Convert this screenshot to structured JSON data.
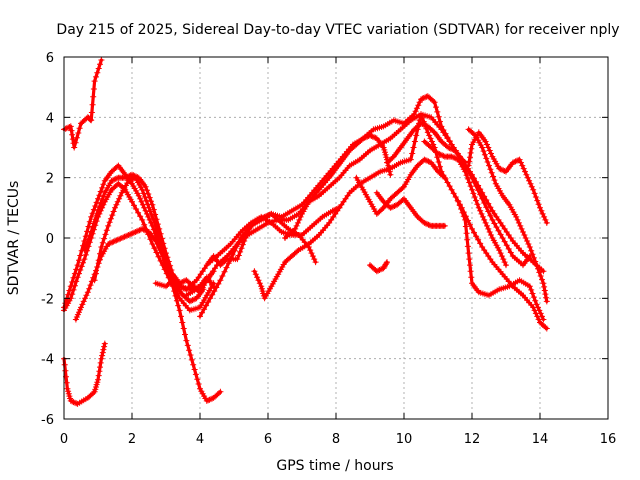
{
  "chart_data": {
    "type": "scatter",
    "title": "Day 215 of 2025, Sidereal Day-to-day VTEC variation (SDTVAR) for receiver nply",
    "xlabel": "GPS time / hours",
    "ylabel": "SDTVAR / TECUs",
    "xlim": [
      0,
      16
    ],
    "ylim": [
      -6,
      6
    ],
    "x_ticks": [
      "0",
      "2",
      "4",
      "6",
      "8",
      "10",
      "12",
      "14",
      "16"
    ],
    "y_ticks": [
      "-6",
      "-4",
      "-2",
      "0",
      "2",
      "4",
      "6"
    ],
    "grid": true,
    "marker": "+",
    "color": "#ff0000",
    "tracks": [
      [
        [
          0.0,
          3.6
        ],
        [
          0.2,
          3.7
        ],
        [
          0.3,
          3.0
        ],
        [
          0.5,
          3.8
        ],
        [
          0.7,
          4.0
        ],
        [
          0.8,
          3.9
        ],
        [
          0.9,
          5.2
        ],
        [
          1.1,
          5.9
        ]
      ],
      [
        [
          0.0,
          -4.0
        ],
        [
          0.1,
          -5.0
        ],
        [
          0.2,
          -5.4
        ],
        [
          0.4,
          -5.5
        ],
        [
          0.7,
          -5.3
        ],
        [
          0.9,
          -5.1
        ],
        [
          1.0,
          -4.7
        ],
        [
          1.1,
          -4.0
        ],
        [
          1.2,
          -3.5
        ]
      ],
      [
        [
          0.0,
          -2.4
        ],
        [
          0.2,
          -2.0
        ],
        [
          0.4,
          -1.3
        ],
        [
          0.6,
          -0.7
        ],
        [
          0.8,
          0.0
        ],
        [
          1.0,
          0.7
        ],
        [
          1.2,
          1.2
        ],
        [
          1.4,
          1.6
        ],
        [
          1.6,
          1.8
        ],
        [
          1.8,
          1.6
        ],
        [
          2.0,
          1.2
        ],
        [
          2.3,
          0.6
        ],
        [
          2.6,
          -0.2
        ],
        [
          2.9,
          -0.9
        ],
        [
          3.2,
          -1.6
        ],
        [
          3.4,
          -2.4
        ],
        [
          3.6,
          -3.4
        ],
        [
          3.8,
          -4.2
        ],
        [
          4.0,
          -5.0
        ],
        [
          4.2,
          -5.4
        ],
        [
          4.4,
          -5.3
        ],
        [
          4.6,
          -5.1
        ]
      ],
      [
        [
          0.0,
          -2.3
        ],
        [
          0.2,
          -1.6
        ],
        [
          0.4,
          -0.9
        ],
        [
          0.6,
          -0.1
        ],
        [
          0.8,
          0.7
        ],
        [
          1.0,
          1.3
        ],
        [
          1.2,
          1.9
        ],
        [
          1.4,
          2.2
        ],
        [
          1.6,
          2.4
        ],
        [
          1.8,
          2.1
        ],
        [
          2.0,
          1.8
        ],
        [
          2.2,
          1.4
        ],
        [
          2.4,
          0.9
        ],
        [
          2.6,
          0.4
        ],
        [
          2.8,
          -0.2
        ],
        [
          3.0,
          -0.8
        ],
        [
          3.2,
          -1.3
        ],
        [
          3.4,
          -1.6
        ],
        [
          3.7,
          -1.7
        ],
        [
          4.0,
          -1.6
        ],
        [
          4.2,
          -1.3
        ],
        [
          4.4,
          -1.6
        ]
      ],
      [
        [
          0.35,
          -2.7
        ],
        [
          0.5,
          -2.3
        ],
        [
          0.7,
          -1.8
        ],
        [
          0.9,
          -1.2
        ],
        [
          1.1,
          -0.6
        ],
        [
          1.3,
          -0.2
        ],
        [
          1.5,
          -0.1
        ],
        [
          1.7,
          0.0
        ],
        [
          1.9,
          0.1
        ],
        [
          2.1,
          0.2
        ],
        [
          2.3,
          0.3
        ],
        [
          2.5,
          0.2
        ],
        [
          2.7,
          -0.1
        ],
        [
          2.9,
          -0.6
        ],
        [
          3.1,
          -1.3
        ],
        [
          3.4,
          -2.0
        ],
        [
          3.7,
          -2.4
        ],
        [
          4.0,
          -2.3
        ],
        [
          4.2,
          -1.9
        ],
        [
          4.4,
          -1.5
        ]
      ],
      [
        [
          0.6,
          -0.4
        ],
        [
          0.8,
          0.2
        ],
        [
          1.0,
          0.9
        ],
        [
          1.2,
          1.5
        ],
        [
          1.4,
          1.9
        ],
        [
          1.6,
          2.0
        ],
        [
          1.8,
          2.0
        ],
        [
          2.0,
          2.1
        ],
        [
          2.2,
          2.0
        ],
        [
          2.4,
          1.7
        ],
        [
          2.6,
          1.1
        ],
        [
          2.8,
          0.3
        ],
        [
          3.0,
          -0.5
        ],
        [
          3.2,
          -1.2
        ],
        [
          3.4,
          -1.5
        ],
        [
          3.6,
          -1.4
        ],
        [
          3.8,
          -1.6
        ],
        [
          4.0,
          -1.8
        ],
        [
          4.2,
          -1.4
        ],
        [
          4.4,
          -1.1
        ]
      ],
      [
        [
          0.9,
          -1.4
        ],
        [
          1.1,
          -0.3
        ],
        [
          1.3,
          0.4
        ],
        [
          1.5,
          1.0
        ],
        [
          1.7,
          1.5
        ],
        [
          1.9,
          1.9
        ],
        [
          2.1,
          2.0
        ],
        [
          2.3,
          1.6
        ],
        [
          2.5,
          1.0
        ],
        [
          2.7,
          0.4
        ],
        [
          2.9,
          -0.4
        ],
        [
          3.1,
          -1.1
        ],
        [
          3.3,
          -1.6
        ],
        [
          3.5,
          -1.9
        ],
        [
          3.7,
          -2.1
        ],
        [
          3.9,
          -2.0
        ],
        [
          4.1,
          -1.7
        ]
      ],
      [
        [
          2.7,
          -1.5
        ],
        [
          3.0,
          -1.6
        ],
        [
          3.2,
          -1.4
        ],
        [
          3.4,
          -1.6
        ],
        [
          3.6,
          -1.7
        ],
        [
          3.9,
          -1.4
        ],
        [
          4.2,
          -0.9
        ],
        [
          4.4,
          -0.6
        ],
        [
          4.6,
          -0.9
        ],
        [
          4.8,
          -0.7
        ],
        [
          5.1,
          -0.7
        ],
        [
          5.3,
          -0.1
        ],
        [
          5.5,
          0.4
        ],
        [
          5.7,
          0.6
        ],
        [
          5.9,
          0.7
        ],
        [
          6.1,
          0.8
        ],
        [
          6.3,
          0.6
        ],
        [
          6.6,
          0.3
        ],
        [
          6.9,
          0.1
        ],
        [
          7.2,
          -0.3
        ],
        [
          7.4,
          -0.8
        ]
      ],
      [
        [
          3.6,
          -1.9
        ],
        [
          3.9,
          -1.7
        ],
        [
          4.2,
          -1.4
        ],
        [
          4.5,
          -0.9
        ],
        [
          4.8,
          -0.6
        ],
        [
          5.1,
          -0.2
        ],
        [
          5.4,
          0.1
        ],
        [
          5.7,
          0.3
        ],
        [
          6.0,
          0.5
        ],
        [
          6.3,
          0.6
        ],
        [
          6.6,
          0.6
        ],
        [
          6.9,
          0.8
        ],
        [
          7.2,
          1.2
        ],
        [
          7.5,
          1.4
        ],
        [
          7.8,
          1.7
        ],
        [
          8.1,
          2.0
        ],
        [
          8.4,
          2.4
        ],
        [
          8.7,
          2.6
        ],
        [
          9.0,
          2.9
        ],
        [
          9.3,
          3.1
        ],
        [
          9.6,
          3.3
        ],
        [
          9.9,
          3.6
        ],
        [
          10.2,
          3.9
        ],
        [
          10.5,
          4.1
        ],
        [
          10.8,
          4.0
        ],
        [
          11.1,
          3.6
        ],
        [
          11.4,
          3.1
        ],
        [
          11.7,
          2.6
        ],
        [
          12.0,
          2.1
        ],
        [
          12.3,
          1.5
        ],
        [
          12.6,
          0.9
        ],
        [
          12.9,
          0.4
        ],
        [
          13.2,
          -0.1
        ],
        [
          13.5,
          -0.5
        ],
        [
          13.8,
          -0.8
        ],
        [
          14.1,
          -1.1
        ]
      ],
      [
        [
          4.0,
          -2.6
        ],
        [
          4.3,
          -2.0
        ],
        [
          4.6,
          -1.4
        ],
        [
          4.9,
          -0.7
        ],
        [
          5.2,
          0.0
        ],
        [
          5.5,
          0.4
        ],
        [
          5.8,
          0.6
        ],
        [
          6.1,
          0.8
        ],
        [
          6.4,
          0.7
        ],
        [
          6.7,
          0.9
        ],
        [
          7.0,
          1.1
        ],
        [
          7.3,
          1.5
        ],
        [
          7.6,
          1.9
        ],
        [
          7.9,
          2.3
        ],
        [
          8.2,
          2.7
        ],
        [
          8.5,
          3.1
        ],
        [
          8.8,
          3.3
        ],
        [
          9.1,
          3.6
        ],
        [
          9.4,
          3.7
        ],
        [
          9.7,
          3.9
        ],
        [
          10.0,
          3.8
        ],
        [
          10.3,
          4.1
        ],
        [
          10.5,
          4.6
        ],
        [
          10.7,
          4.7
        ],
        [
          10.9,
          4.5
        ],
        [
          11.1,
          3.7
        ],
        [
          11.4,
          3.1
        ],
        [
          11.7,
          2.6
        ],
        [
          12.0,
          2.0
        ],
        [
          12.3,
          1.3
        ],
        [
          12.6,
          0.6
        ],
        [
          12.9,
          0.0
        ],
        [
          13.2,
          -0.6
        ],
        [
          13.5,
          -0.9
        ],
        [
          13.7,
          -0.6
        ]
      ],
      [
        [
          5.6,
          -1.1
        ],
        [
          5.8,
          -1.6
        ],
        [
          5.9,
          -2.0
        ],
        [
          6.1,
          -1.6
        ],
        [
          6.3,
          -1.2
        ],
        [
          6.5,
          -0.8
        ],
        [
          6.7,
          -0.6
        ],
        [
          6.9,
          -0.4
        ],
        [
          7.2,
          -0.2
        ],
        [
          7.5,
          0.1
        ],
        [
          7.8,
          0.5
        ],
        [
          8.1,
          1.0
        ],
        [
          8.4,
          1.5
        ],
        [
          8.7,
          1.8
        ],
        [
          9.0,
          2.0
        ],
        [
          9.3,
          2.2
        ],
        [
          9.6,
          2.3
        ],
        [
          9.9,
          2.5
        ],
        [
          10.2,
          2.6
        ],
        [
          10.4,
          3.6
        ],
        [
          10.5,
          4.1
        ],
        [
          10.7,
          3.5
        ],
        [
          10.9,
          3.0
        ],
        [
          11.1,
          2.2
        ],
        [
          11.4,
          1.6
        ],
        [
          11.7,
          1.0
        ],
        [
          12.0,
          0.3
        ],
        [
          12.3,
          -0.3
        ],
        [
          12.6,
          -0.8
        ],
        [
          12.9,
          -1.2
        ],
        [
          13.2,
          -1.6
        ],
        [
          13.5,
          -1.9
        ],
        [
          13.8,
          -2.3
        ],
        [
          14.0,
          -2.8
        ],
        [
          14.2,
          -3.0
        ]
      ],
      [
        [
          4.3,
          -0.8
        ],
        [
          4.6,
          -0.5
        ],
        [
          4.9,
          -0.2
        ],
        [
          5.2,
          0.2
        ],
        [
          5.5,
          0.5
        ],
        [
          5.8,
          0.7
        ],
        [
          6.1,
          0.5
        ],
        [
          6.4,
          0.2
        ],
        [
          6.7,
          0.1
        ],
        [
          7.0,
          0.1
        ],
        [
          7.3,
          0.4
        ],
        [
          7.6,
          0.7
        ],
        [
          7.9,
          0.9
        ],
        [
          8.1,
          1.0
        ]
      ],
      [
        [
          6.5,
          0.0
        ],
        [
          6.8,
          0.3
        ],
        [
          7.0,
          0.8
        ],
        [
          7.2,
          1.2
        ],
        [
          7.5,
          1.6
        ],
        [
          7.8,
          2.0
        ],
        [
          8.0,
          2.3
        ],
        [
          8.2,
          2.6
        ],
        [
          8.4,
          2.9
        ],
        [
          8.6,
          3.1
        ],
        [
          8.8,
          3.3
        ],
        [
          9.0,
          3.4
        ],
        [
          9.2,
          3.3
        ],
        [
          9.4,
          3.0
        ],
        [
          9.5,
          2.6
        ],
        [
          9.6,
          2.1
        ]
      ],
      [
        [
          8.6,
          2.0
        ],
        [
          8.8,
          1.6
        ],
        [
          9.0,
          1.2
        ],
        [
          9.2,
          0.8
        ],
        [
          9.4,
          1.0
        ],
        [
          9.6,
          1.3
        ],
        [
          9.8,
          1.5
        ],
        [
          10.0,
          1.7
        ],
        [
          10.2,
          2.1
        ],
        [
          10.4,
          2.4
        ],
        [
          10.6,
          2.6
        ],
        [
          10.8,
          2.5
        ],
        [
          11.0,
          2.2
        ],
        [
          11.2,
          2.0
        ]
      ],
      [
        [
          9.2,
          1.5
        ],
        [
          9.4,
          1.2
        ],
        [
          9.6,
          1.0
        ],
        [
          9.8,
          1.1
        ],
        [
          10.0,
          1.3
        ],
        [
          10.2,
          1.0
        ],
        [
          10.4,
          0.7
        ],
        [
          10.6,
          0.5
        ],
        [
          10.8,
          0.4
        ],
        [
          11.0,
          0.4
        ],
        [
          11.2,
          0.4
        ]
      ],
      [
        [
          9.5,
          2.5
        ],
        [
          9.7,
          2.7
        ],
        [
          9.9,
          3.0
        ],
        [
          10.1,
          3.3
        ],
        [
          10.3,
          3.6
        ],
        [
          10.5,
          3.8
        ],
        [
          10.7,
          3.7
        ],
        [
          10.9,
          3.5
        ],
        [
          11.1,
          3.2
        ],
        [
          11.3,
          3.0
        ],
        [
          11.5,
          2.9
        ],
        [
          11.7,
          2.6
        ],
        [
          11.8,
          2.5
        ]
      ],
      [
        [
          10.6,
          3.2
        ],
        [
          10.8,
          3.0
        ],
        [
          11.0,
          2.8
        ],
        [
          11.2,
          2.7
        ],
        [
          11.4,
          2.7
        ],
        [
          11.6,
          2.6
        ],
        [
          11.8,
          2.2
        ],
        [
          12.0,
          1.6
        ],
        [
          12.2,
          1.0
        ],
        [
          12.4,
          0.5
        ],
        [
          12.6,
          0.0
        ],
        [
          12.8,
          -0.4
        ],
        [
          13.0,
          -0.9
        ]
      ],
      [
        [
          9.0,
          -0.9
        ],
        [
          9.2,
          -1.1
        ],
        [
          9.4,
          -1.0
        ],
        [
          9.5,
          -0.8
        ]
      ],
      [
        [
          11.6,
          1.2
        ],
        [
          11.8,
          0.6
        ],
        [
          11.9,
          -0.5
        ],
        [
          12.0,
          -1.5
        ],
        [
          12.2,
          -1.8
        ],
        [
          12.5,
          -1.9
        ],
        [
          12.8,
          -1.7
        ],
        [
          13.1,
          -1.6
        ],
        [
          13.4,
          -1.4
        ],
        [
          13.7,
          -1.6
        ],
        [
          13.9,
          -2.2
        ],
        [
          14.1,
          -2.7
        ]
      ],
      [
        [
          11.9,
          2.4
        ],
        [
          12.0,
          3.1
        ],
        [
          12.2,
          3.5
        ],
        [
          12.4,
          3.2
        ],
        [
          12.6,
          2.7
        ],
        [
          12.8,
          2.3
        ],
        [
          13.0,
          2.2
        ],
        [
          13.2,
          2.5
        ],
        [
          13.4,
          2.6
        ],
        [
          13.6,
          2.1
        ],
        [
          13.8,
          1.6
        ],
        [
          14.0,
          1.0
        ],
        [
          14.2,
          0.5
        ]
      ],
      [
        [
          11.9,
          3.6
        ],
        [
          12.1,
          3.4
        ],
        [
          12.3,
          3.0
        ],
        [
          12.5,
          2.4
        ],
        [
          12.7,
          1.8
        ],
        [
          12.9,
          1.4
        ],
        [
          13.1,
          1.1
        ],
        [
          13.3,
          0.7
        ],
        [
          13.5,
          0.2
        ],
        [
          13.7,
          -0.3
        ],
        [
          13.9,
          -0.9
        ],
        [
          14.1,
          -1.5
        ],
        [
          14.2,
          -2.1
        ]
      ]
    ]
  }
}
